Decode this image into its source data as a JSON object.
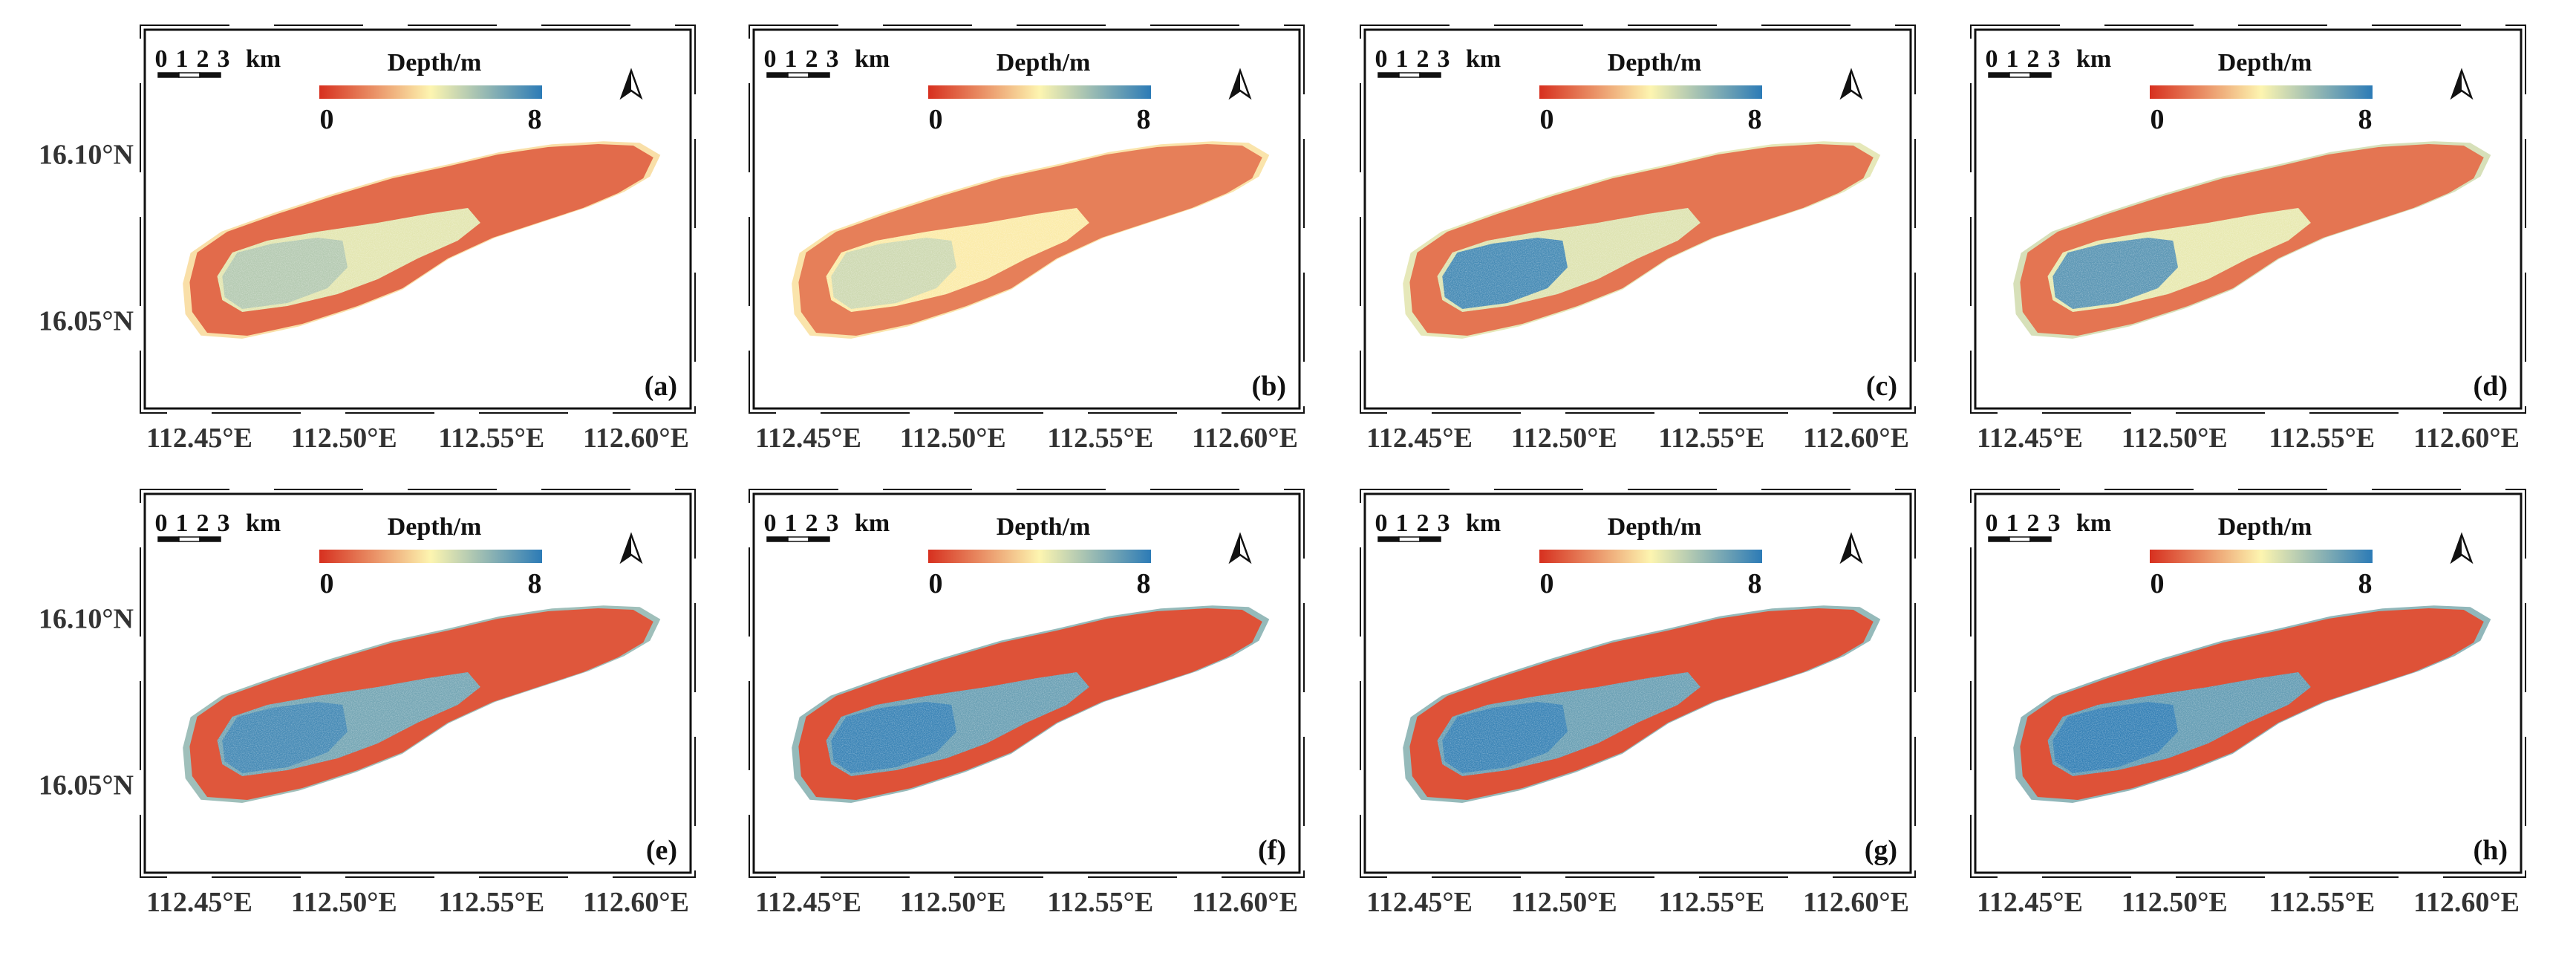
{
  "figure": {
    "lat_labels": [
      "16.10°N",
      "16.05°N"
    ],
    "lon_labels": [
      "112.45°E",
      "112.50°E",
      "112.55°E",
      "112.60°E"
    ],
    "scale_bar": {
      "ticks": [
        "0",
        "1",
        "2",
        "3"
      ],
      "unit": "km"
    },
    "legend": {
      "title": "Depth/m",
      "min_label": "0",
      "max_label": "8",
      "min": 0,
      "max": 8
    },
    "colors": {
      "shallow": "#d7301f",
      "mid": "#fdf5b0",
      "deep": "#2c7bb6"
    }
  },
  "panels": [
    {
      "label": "(a)",
      "lagoon_depth": 4.5,
      "lagoon_west_depth": 5.5,
      "rim_depth": 1.2,
      "outer_depth": 3.5
    },
    {
      "label": "(b)",
      "lagoon_depth": 3.8,
      "lagoon_west_depth": 5.0,
      "rim_depth": 1.6,
      "outer_depth": 3.6
    },
    {
      "label": "(c)",
      "lagoon_depth": 4.6,
      "lagoon_west_depth": 7.8,
      "rim_depth": 1.4,
      "outer_depth": 4.5
    },
    {
      "label": "(d)",
      "lagoon_depth": 4.4,
      "lagoon_west_depth": 7.4,
      "rim_depth": 1.4,
      "outer_depth": 4.8
    },
    {
      "label": "(e)",
      "lagoon_depth": 6.6,
      "lagoon_west_depth": 7.6,
      "rim_depth": 0.8,
      "outer_depth": 6.0
    },
    {
      "label": "(f)",
      "lagoon_depth": 6.8,
      "lagoon_west_depth": 7.8,
      "rim_depth": 0.7,
      "outer_depth": 6.2
    },
    {
      "label": "(g)",
      "lagoon_depth": 6.8,
      "lagoon_west_depth": 7.8,
      "rim_depth": 0.7,
      "outer_depth": 6.2
    },
    {
      "label": "(h)",
      "lagoon_depth": 6.9,
      "lagoon_west_depth": 7.9,
      "rim_depth": 0.7,
      "outer_depth": 6.3
    }
  ]
}
